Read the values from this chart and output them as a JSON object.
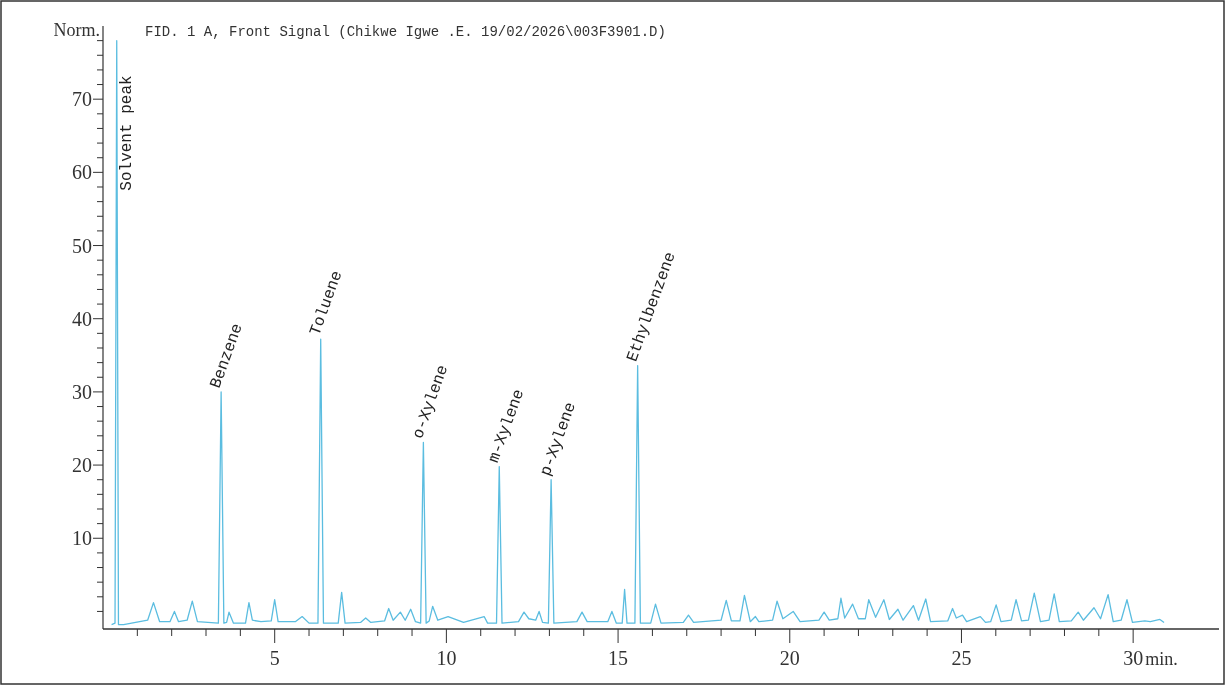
{
  "chart_data": {
    "type": "line",
    "title": "FID. 1 A, Front Signal (Chikwe Igwe .E. 19/02/2026\\003F3901.D)",
    "ylabel": "Norm.",
    "xlabel": "min.",
    "xlim": [
      0,
      32.5
    ],
    "ylim": [
      -2.4,
      80
    ],
    "xticks": [
      {
        "value": 1,
        "label": null
      },
      {
        "value": 2,
        "label": null
      },
      {
        "value": 3,
        "label": null
      },
      {
        "value": 4,
        "label": null
      },
      5,
      {
        "value": 6,
        "label": null
      },
      {
        "value": 7,
        "label": null
      },
      {
        "value": 8,
        "label": null
      },
      {
        "value": 9,
        "label": null
      },
      10,
      {
        "value": 11,
        "label": null
      },
      {
        "value": 12,
        "label": null
      },
      {
        "value": 13,
        "label": null
      },
      {
        "value": 14,
        "label": null
      },
      15,
      {
        "value": 16,
        "label": null
      },
      {
        "value": 17,
        "label": null
      },
      {
        "value": 18,
        "label": null
      },
      {
        "value": 19,
        "label": null
      },
      20,
      {
        "value": 21,
        "label": null
      },
      {
        "value": 22,
        "label": null
      },
      {
        "value": 23,
        "label": null
      },
      {
        "value": 24,
        "label": null
      },
      25,
      {
        "value": 26,
        "label": null
      },
      {
        "value": 27,
        "label": null
      },
      {
        "value": 28,
        "label": null
      },
      {
        "value": 29,
        "label": null
      },
      30
    ],
    "yticks": [
      {
        "value": 0,
        "label": null
      },
      {
        "value": 2,
        "label": null
      },
      {
        "value": 4,
        "label": null
      },
      {
        "value": 6,
        "label": null
      },
      {
        "value": 8,
        "label": null
      },
      10,
      {
        "value": 12,
        "label": null
      },
      {
        "value": 14,
        "label": null
      },
      {
        "value": 16,
        "label": null
      },
      {
        "value": 18,
        "label": null
      },
      20,
      {
        "value": 22,
        "label": null
      },
      {
        "value": 24,
        "label": null
      },
      {
        "value": 26,
        "label": null
      },
      {
        "value": 28,
        "label": null
      },
      30,
      {
        "value": 32,
        "label": null
      },
      {
        "value": 34,
        "label": null
      },
      {
        "value": 36,
        "label": null
      },
      {
        "value": 38,
        "label": null
      },
      40,
      {
        "value": 42,
        "label": null
      },
      {
        "value": 44,
        "label": null
      },
      {
        "value": 46,
        "label": null
      },
      {
        "value": 48,
        "label": null
      },
      50,
      {
        "value": 52,
        "label": null
      },
      {
        "value": 54,
        "label": null
      },
      {
        "value": 56,
        "label": null
      },
      {
        "value": 58,
        "label": null
      },
      60,
      {
        "value": 62,
        "label": null
      },
      {
        "value": 64,
        "label": null
      },
      {
        "value": 66,
        "label": null
      },
      {
        "value": 68,
        "label": null
      },
      70,
      {
        "value": 72,
        "label": null
      },
      {
        "value": 74,
        "label": null
      },
      {
        "value": 76,
        "label": null
      },
      {
        "value": 78,
        "label": null
      }
    ],
    "grid": false,
    "line_style": "solid",
    "series": [
      {
        "color": "#5bbde0",
        "x": [
          0.25,
          0.35,
          0.4,
          0.45,
          0.6,
          1.3,
          1.47,
          1.65,
          1.95,
          2.08,
          2.2,
          2.45,
          2.6,
          2.75,
          3.36,
          3.44,
          3.52,
          3.6,
          3.67,
          3.8,
          4.15,
          4.25,
          4.35,
          4.6,
          4.9,
          5.0,
          5.1,
          5.6,
          5.8,
          6.0,
          6.26,
          6.34,
          6.42,
          6.85,
          6.95,
          7.05,
          7.5,
          7.65,
          7.8,
          8.2,
          8.32,
          8.45,
          8.66,
          8.8,
          8.96,
          9.1,
          9.25,
          9.33,
          9.41,
          9.5,
          9.6,
          9.75,
          10.05,
          10.5,
          11.1,
          11.2,
          11.46,
          11.54,
          11.62,
          12.1,
          12.26,
          12.4,
          12.6,
          12.7,
          12.8,
          12.97,
          13.05,
          13.13,
          13.8,
          13.95,
          14.1,
          14.7,
          14.82,
          14.95,
          15.12,
          15.19,
          15.26,
          15.49,
          15.57,
          15.65,
          15.95,
          16.09,
          16.25,
          16.9,
          17.05,
          17.2,
          18.0,
          18.15,
          18.3,
          18.55,
          18.68,
          18.85,
          19.0,
          19.1,
          19.5,
          19.63,
          19.8,
          20.1,
          20.3,
          20.85,
          21.0,
          21.15,
          21.4,
          21.49,
          21.6,
          21.83,
          22.0,
          22.2,
          22.3,
          22.5,
          22.74,
          22.9,
          23.15,
          23.3,
          23.6,
          23.75,
          23.96,
          24.1,
          24.6,
          24.74,
          24.85,
          25.03,
          25.15,
          25.55,
          25.7,
          25.85,
          26.01,
          26.15,
          26.45,
          26.59,
          26.75,
          26.95,
          27.12,
          27.3,
          27.55,
          27.7,
          27.85,
          28.2,
          28.4,
          28.55,
          28.86,
          29.05,
          29.27,
          29.42,
          29.65,
          29.82,
          29.98,
          30.34,
          30.5,
          30.78,
          30.9
        ],
        "values": [
          -1.8,
          -1.6,
          78,
          -1.8,
          -1.8,
          -1.2,
          1.2,
          -1.4,
          -1.4,
          0,
          -1.4,
          -1.2,
          1.4,
          -1.4,
          -1.6,
          30,
          -1.6,
          -1.5,
          -0.1,
          -1.6,
          -1.6,
          1.2,
          -1.2,
          -1.4,
          -1.3,
          1.6,
          -1.4,
          -1.4,
          -0.7,
          -1.6,
          -1.6,
          37.2,
          -1.6,
          -1.6,
          2.6,
          -1.6,
          -1.5,
          -0.9,
          -1.5,
          -1.3,
          0.4,
          -1.2,
          -0.1,
          -1.2,
          0.3,
          -1.4,
          -1.6,
          23.1,
          -1.6,
          -1.3,
          0.7,
          -1.2,
          -0.7,
          -1.5,
          -0.7,
          -1.6,
          -1.6,
          19.8,
          -1.6,
          -1.4,
          -0.1,
          -1.0,
          -1.2,
          0,
          -1.5,
          -1.6,
          18.0,
          -1.6,
          -1.4,
          -0.1,
          -1.4,
          -1.4,
          0,
          -1.6,
          -1.6,
          3.0,
          -1.6,
          -1.6,
          33.6,
          -1.6,
          -1.6,
          1.0,
          -1.6,
          -1.5,
          -0.5,
          -1.5,
          -1.2,
          1.5,
          -1.3,
          -1.3,
          2.2,
          -1.4,
          -0.7,
          -1.4,
          -1.2,
          1.4,
          -1.0,
          0,
          -1.4,
          -1.2,
          -0.1,
          -1.2,
          -1.0,
          1.8,
          -0.9,
          1.0,
          -1.0,
          -1.0,
          1.6,
          -0.8,
          1.6,
          -1.1,
          0.3,
          -1.2,
          0.8,
          -1.2,
          1.7,
          -1.4,
          -1.3,
          0.4,
          -0.9,
          -0.5,
          -1.4,
          -0.7,
          -1.5,
          -1.4,
          0.9,
          -1.4,
          -1.2,
          1.6,
          -1.3,
          -1.2,
          2.5,
          -1.4,
          -1.2,
          2.4,
          -1.4,
          -1.3,
          -0.1,
          -1.2,
          0.5,
          -1.0,
          2.3,
          -1.4,
          -1.2,
          1.6,
          -1.5,
          -1.3,
          -1.4,
          -1.1,
          -1.5
        ]
      }
    ],
    "annotations": [
      {
        "text": "Solvent peak",
        "x": 0.4,
        "y": 78
      },
      {
        "text": "Benzene",
        "x": 3.44,
        "y": 30
      },
      {
        "text": "Toluene",
        "x": 6.34,
        "y": 37.2
      },
      {
        "text": "o-Xylene",
        "x": 9.33,
        "y": 23.1
      },
      {
        "text": "m-Xylene",
        "x": 11.54,
        "y": 19.8
      },
      {
        "text": "p-Xylene",
        "x": 13.05,
        "y": 18.0
      },
      {
        "text": "Ethylbenzene",
        "x": 15.57,
        "y": 33.6
      }
    ]
  }
}
